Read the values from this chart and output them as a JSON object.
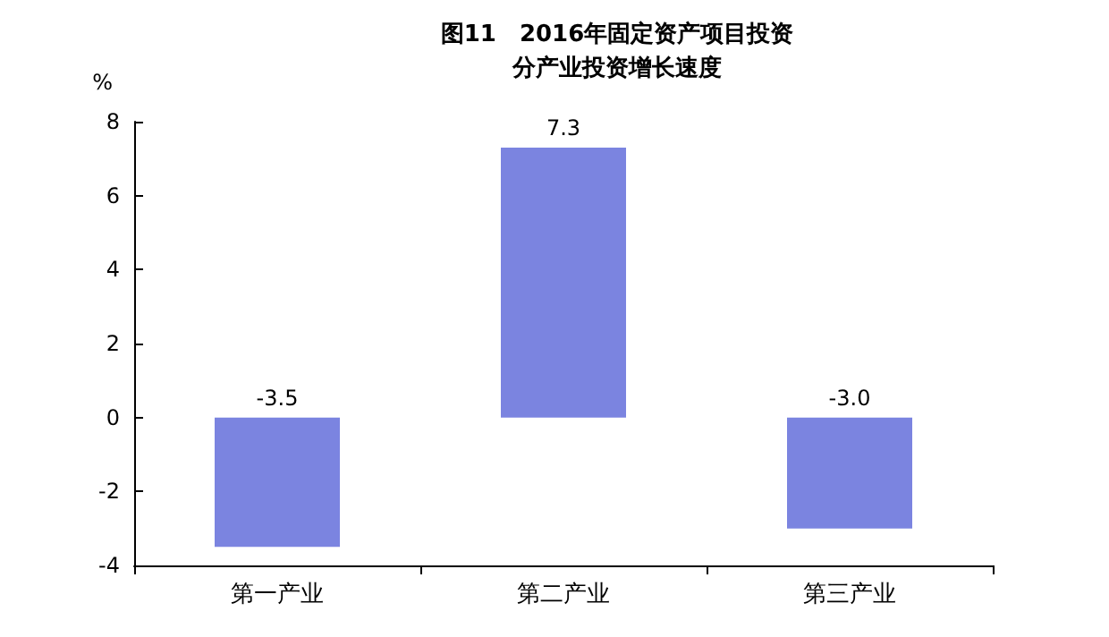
{
  "chart_data": {
    "type": "bar",
    "title": "图11　2016年固定资产项目投资",
    "subtitle": "分产业投资增长速度",
    "ylabel": "%",
    "categories": [
      "第一产业",
      "第二产业",
      "第三产业"
    ],
    "values": [
      -3.5,
      7.3,
      -3.0
    ],
    "color": "#7b84e0",
    "value_labels": [
      "-3.5",
      "7.3",
      "-3.0"
    ],
    "ylim": [
      -4,
      8
    ],
    "yticks": [
      -4,
      -2,
      0,
      2,
      4,
      6,
      8
    ],
    "grid": false
  }
}
